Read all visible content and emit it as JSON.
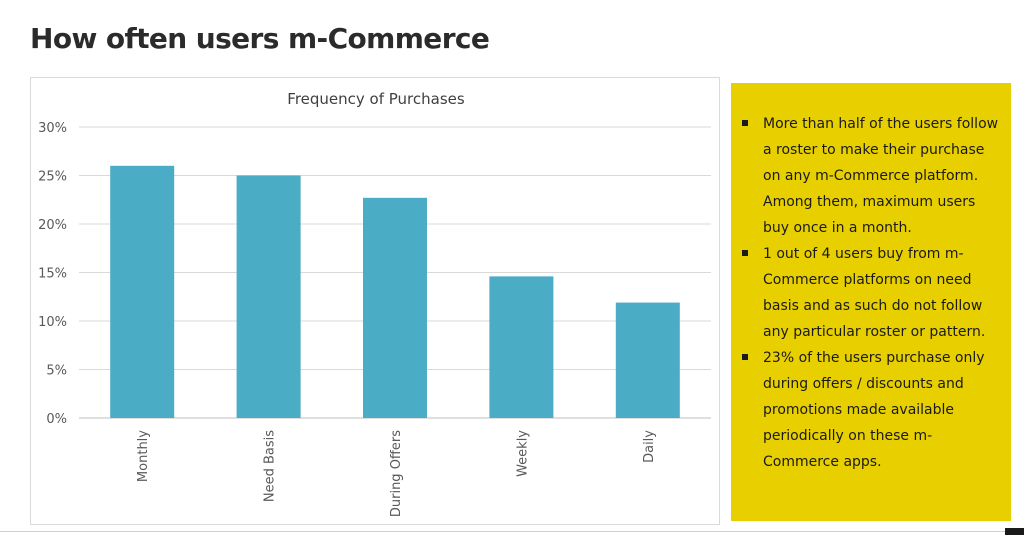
{
  "page": {
    "title": "How often users m-Commerce"
  },
  "chart_data": {
    "type": "bar",
    "title": "Frequency of Purchases",
    "categories": [
      "Monthly",
      "Need Basis",
      "During Offers",
      "Weekly",
      "Daily"
    ],
    "values": [
      26,
      25,
      22.7,
      14.6,
      11.9
    ],
    "unit": "%",
    "ylim": [
      0,
      30
    ],
    "yticks": [
      "0%",
      "5%",
      "10%",
      "15%",
      "20%",
      "25%",
      "30%"
    ],
    "ytick_values": [
      0,
      5,
      10,
      15,
      20,
      25,
      30
    ],
    "grid": true,
    "bar_color": "#4bacc6"
  },
  "notes": {
    "background_color": "#e8d000",
    "items": [
      "More than half of the users follow a roster to make their purchase on any m-Commerce platform.  Among them, maximum users buy once in a month.",
      "1 out of 4 users buy from m-Commerce platforms on need basis and as such do not follow any particular roster or pattern.",
      "23% of the users purchase only during offers / discounts and promotions made available periodically on these m-Commerce apps."
    ]
  }
}
